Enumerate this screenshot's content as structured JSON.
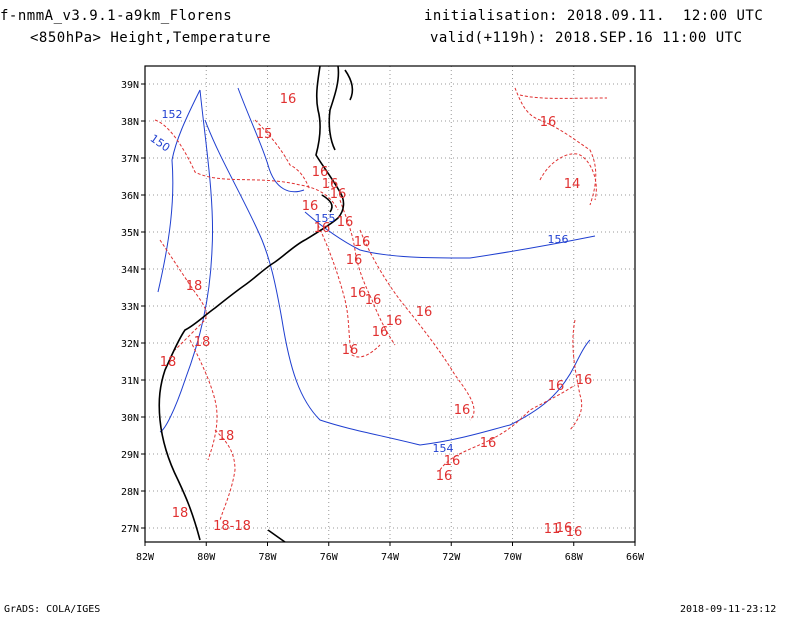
{
  "header": {
    "model": "f-nmmA_v3.9.1-a9km_Florens",
    "level_vars": "<850hPa> Height,Temperature",
    "init": "initialisation: 2018.09.11.  12:00 UTC",
    "valid": "valid(+119h): 2018.SEP.16 11:00 UTC"
  },
  "footer": {
    "credit": "GrADS: COLA/IGES",
    "timestamp": "2018-09-11-23:12"
  },
  "axes": {
    "lon_ticks": [
      "82W",
      "80W",
      "78W",
      "76W",
      "74W",
      "72W",
      "70W",
      "68W",
      "66W"
    ],
    "lat_ticks": [
      "27N",
      "28N",
      "29N",
      "30N",
      "31N",
      "32N",
      "33N",
      "34N",
      "35N",
      "36N",
      "37N",
      "38N",
      "39N"
    ]
  },
  "colors": {
    "height_contour": "#1f3fd0",
    "temperature_contour": "#e03030",
    "coastline": "#000000",
    "grid": "#999999"
  },
  "height_labels": [
    {
      "text": "152"
    },
    {
      "text": "150"
    },
    {
      "text": "155"
    },
    {
      "text": "156"
    },
    {
      "text": "154"
    }
  ],
  "temp_labels": [
    {
      "text": "16"
    },
    {
      "text": "15"
    },
    {
      "text": "16"
    },
    {
      "text": "16"
    },
    {
      "text": "16"
    },
    {
      "text": "16"
    },
    {
      "text": "16"
    },
    {
      "text": "16"
    },
    {
      "text": "16"
    },
    {
      "text": "16"
    },
    {
      "text": "16"
    },
    {
      "text": "16"
    },
    {
      "text": "16"
    },
    {
      "text": "16"
    },
    {
      "text": "16"
    },
    {
      "text": "16"
    },
    {
      "text": "16"
    },
    {
      "text": "16"
    },
    {
      "text": "16"
    },
    {
      "text": "16"
    },
    {
      "text": "16"
    },
    {
      "text": "16"
    },
    {
      "text": "14"
    },
    {
      "text": "16"
    },
    {
      "text": "18"
    },
    {
      "text": "18"
    },
    {
      "text": "18"
    },
    {
      "text": "18"
    },
    {
      "text": "18"
    },
    {
      "text": "18-18"
    },
    {
      "text": "11"
    },
    {
      "text": "16"
    },
    {
      "text": "16"
    }
  ]
}
